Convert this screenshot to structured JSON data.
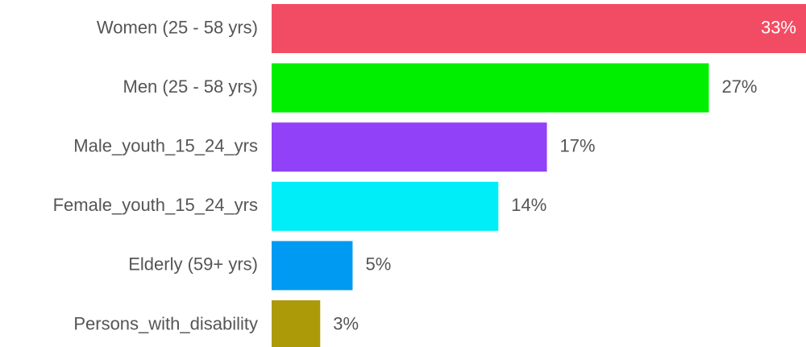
{
  "chart_data": {
    "type": "bar",
    "orientation": "horizontal",
    "categories": [
      "Women (25 - 58 yrs)",
      "Men (25 - 58 yrs)",
      "Male_youth_15_24_yrs",
      "Female_youth_15_24_yrs",
      "Elderly (59+ yrs)",
      "Persons_with_disability"
    ],
    "values": [
      33,
      27,
      17,
      14,
      5,
      3
    ],
    "value_labels": [
      "33%",
      "27%",
      "17%",
      "14%",
      "5%",
      "3%"
    ],
    "colors": [
      "#f24c64",
      "#00ef00",
      "#9141f8",
      "#00eef8",
      "#009af2",
      "#ad9a08"
    ]
  }
}
